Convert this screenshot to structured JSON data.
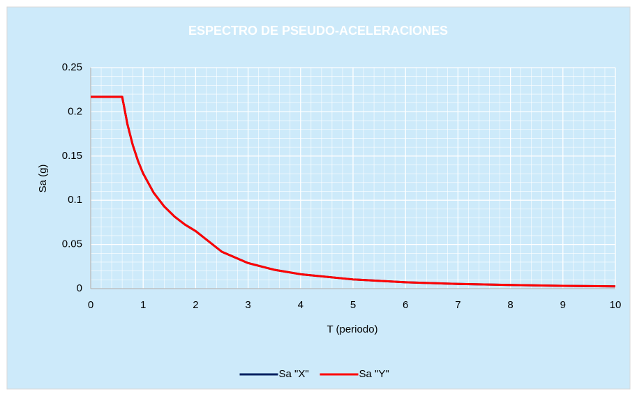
{
  "chart_data": {
    "type": "line",
    "title": "ESPECTRO DE PSEUDO-ACELERACIONES",
    "xlabel": "T (periodo)",
    "ylabel": "Sa (g)",
    "x": [
      0,
      0.2,
      0.4,
      0.6,
      0.7,
      0.8,
      0.9,
      1,
      1.2,
      1.4,
      1.6,
      1.8,
      2,
      2.5,
      3,
      3.5,
      4,
      5,
      6,
      7,
      8,
      9,
      10
    ],
    "series": [
      {
        "name": "Sa \"X\"",
        "color": "#002060",
        "values": [
          0.217,
          0.217,
          0.217,
          0.217,
          0.186,
          0.1628,
          0.1447,
          0.1302,
          0.1085,
          0.093,
          0.0814,
          0.0723,
          0.0651,
          0.0417,
          0.0289,
          0.0213,
          0.0163,
          0.0104,
          0.0072,
          0.0053,
          0.0041,
          0.0032,
          0.0026
        ]
      },
      {
        "name": "Sa \"Y\"",
        "color": "#ff0000",
        "values": [
          0.217,
          0.217,
          0.217,
          0.217,
          0.186,
          0.1628,
          0.1447,
          0.1302,
          0.1085,
          0.093,
          0.0814,
          0.0723,
          0.0651,
          0.0417,
          0.0289,
          0.0213,
          0.0163,
          0.0104,
          0.0072,
          0.0053,
          0.0041,
          0.0032,
          0.0026
        ]
      }
    ],
    "xlim": [
      0,
      10
    ],
    "xticks": [
      0,
      1,
      2,
      3,
      4,
      5,
      6,
      7,
      8,
      9,
      10
    ],
    "ylim": [
      0,
      0.25
    ],
    "yticks": [
      0,
      0.05,
      0.1,
      0.15,
      0.2,
      0.25
    ],
    "grid": true,
    "minor_grid": true,
    "legend": "bottom"
  }
}
